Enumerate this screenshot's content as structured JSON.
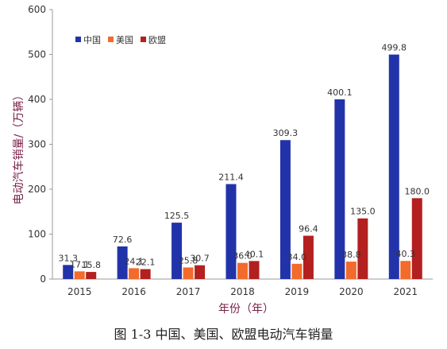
{
  "chart_data": {
    "type": "bar",
    "title": "",
    "xlabel": "年份（年）",
    "ylabel": "电动汽车销量/（万辆）",
    "categories": [
      "2015",
      "2016",
      "2017",
      "2018",
      "2019",
      "2020",
      "2021"
    ],
    "series": [
      {
        "name": "中国",
        "color": "#2233aa",
        "values": [
          31.3,
          72.6,
          125.5,
          211.4,
          309.3,
          400.1,
          499.8
        ]
      },
      {
        "name": "美国",
        "color": "#f26a2c",
        "values": [
          17.1,
          24.1,
          25.8,
          36.0,
          34.0,
          38.8,
          40.3
        ]
      },
      {
        "name": "欧盟",
        "color": "#b3201f",
        "values": [
          15.8,
          22.1,
          30.7,
          40.1,
          96.4,
          135.0,
          180.0
        ]
      }
    ],
    "data_labels": [
      [
        "31.3",
        "72.6",
        "125.5",
        "211.4",
        "309.3",
        "400.1",
        "499.8"
      ],
      [
        "17.1",
        "24.1",
        "25.8",
        "36.0",
        "34.0",
        "38.8",
        "40.3"
      ],
      [
        "15.8",
        "22.1",
        "30.7",
        "40.1",
        "96.4",
        "135.0",
        "180.0"
      ]
    ],
    "ylim": [
      0,
      600
    ],
    "yticks": [
      "0",
      "100",
      "200",
      "300",
      "400",
      "500",
      "600"
    ],
    "grid": false,
    "legend": "top-left"
  },
  "caption": "图 1-3 中国、美国、欧盟电动汽车销量"
}
